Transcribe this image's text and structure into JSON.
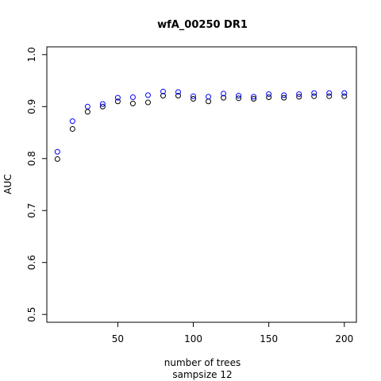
{
  "chart_data": {
    "type": "scatter",
    "title": "wfA_00250 DR1",
    "xlabel": "number of trees",
    "sub_xlabel": "sampsize 12",
    "ylabel": "AUC",
    "xlim": [
      3,
      208
    ],
    "ylim": [
      0.485,
      1.015
    ],
    "xticks": [
      50,
      100,
      150,
      200
    ],
    "yticks": [
      0.5,
      0.6,
      0.7,
      0.8,
      0.9,
      1.0
    ],
    "ytick_labels": [
      "0.5",
      "0.6",
      "0.7",
      "0.8",
      "0.9",
      "1.0"
    ],
    "grid": false,
    "series": [
      {
        "color": "#000000",
        "x": [
          10,
          20,
          30,
          40,
          50,
          60,
          70,
          80,
          90,
          100,
          110,
          120,
          130,
          140,
          150,
          160,
          170,
          180,
          190,
          200
        ],
        "y": [
          0.799,
          0.857,
          0.89,
          0.9,
          0.91,
          0.906,
          0.908,
          0.921,
          0.921,
          0.915,
          0.91,
          0.917,
          0.916,
          0.915,
          0.918,
          0.917,
          0.919,
          0.92,
          0.92,
          0.92
        ]
      },
      {
        "color": "#0000ff",
        "x": [
          10,
          20,
          30,
          40,
          50,
          60,
          70,
          80,
          90,
          100,
          110,
          120,
          130,
          140,
          150,
          160,
          170,
          180,
          190,
          200
        ],
        "y": [
          0.813,
          0.872,
          0.9,
          0.905,
          0.917,
          0.918,
          0.922,
          0.929,
          0.928,
          0.92,
          0.919,
          0.925,
          0.921,
          0.919,
          0.924,
          0.922,
          0.924,
          0.926,
          0.926,
          0.926
        ]
      }
    ]
  }
}
